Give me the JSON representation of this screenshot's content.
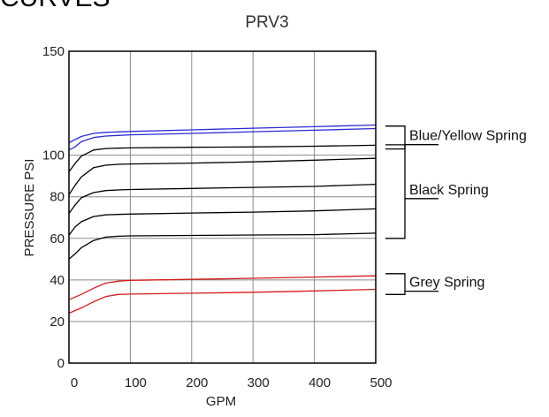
{
  "cut_heading": "CURVES",
  "chart_data": {
    "type": "line",
    "title": "PRV3",
    "xlabel": "GPM",
    "ylabel": "PRESSURE PSI",
    "xlim": [
      0,
      500
    ],
    "ylim": [
      0,
      150
    ],
    "x_ticks": [
      0,
      100,
      200,
      300,
      400,
      500
    ],
    "y_ticks": [
      0,
      20,
      40,
      60,
      80,
      100,
      150
    ],
    "grid": true,
    "groups": [
      {
        "label": "Blue/Yellow Spring",
        "y_range": [
          103,
          114
        ]
      },
      {
        "label": "Black Spring",
        "y_range": [
          60,
          105
        ]
      },
      {
        "label": "Grey Spring",
        "y_range": [
          33,
          43
        ]
      }
    ],
    "series": [
      {
        "color": "#2b2bd6",
        "x": [
          0,
          20,
          40,
          60,
          80,
          100,
          200,
          300,
          400,
          500
        ],
        "y": [
          106,
          109,
          110.5,
          111,
          111.2,
          111.4,
          112.2,
          113,
          113.7,
          114.5
        ]
      },
      {
        "color": "#2b2bd6",
        "x": [
          0,
          10,
          20,
          40,
          60,
          80,
          100,
          200,
          300,
          400,
          500
        ],
        "y": [
          102.5,
          104,
          106.5,
          108.5,
          109.2,
          109.5,
          109.8,
          110.5,
          111.3,
          112,
          112.8
        ]
      },
      {
        "color": "#000000",
        "x": [
          0,
          10,
          20,
          40,
          60,
          80,
          100,
          200,
          300,
          400,
          500
        ],
        "y": [
          92,
          96,
          99.5,
          102.5,
          103.2,
          103.4,
          103.5,
          103.8,
          104,
          104.3,
          104.8
        ]
      },
      {
        "color": "#000000",
        "x": [
          0,
          10,
          20,
          40,
          60,
          80,
          100,
          200,
          300,
          400,
          500
        ],
        "y": [
          81,
          85.5,
          89.5,
          94,
          95.2,
          95.6,
          95.8,
          96.2,
          96.8,
          97.6,
          98.5
        ]
      },
      {
        "color": "#000000",
        "x": [
          0,
          10,
          20,
          40,
          60,
          80,
          100,
          200,
          300,
          400,
          500
        ],
        "y": [
          72,
          76,
          79.5,
          82,
          83,
          83.3,
          83.5,
          84,
          84.5,
          85,
          86
        ]
      },
      {
        "color": "#000000",
        "x": [
          0,
          10,
          20,
          40,
          60,
          80,
          100,
          200,
          300,
          400,
          500
        ],
        "y": [
          61.5,
          65.5,
          68,
          70.5,
          71.3,
          71.5,
          71.7,
          72.2,
          72.6,
          73.2,
          74.2
        ]
      },
      {
        "color": "#000000",
        "x": [
          0,
          10,
          20,
          40,
          60,
          80,
          100,
          200,
          300,
          400,
          500
        ],
        "y": [
          50,
          52.5,
          55.5,
          59,
          60.6,
          61,
          61.2,
          61.4,
          61.6,
          61.8,
          62.5
        ]
      },
      {
        "color": "#d41b1b",
        "x": [
          0,
          20,
          40,
          60,
          80,
          100,
          200,
          300,
          400,
          500
        ],
        "y": [
          30.5,
          33,
          36,
          38.5,
          39.4,
          39.8,
          40.3,
          40.8,
          41.4,
          42
        ]
      },
      {
        "color": "#d41b1b",
        "x": [
          0,
          20,
          40,
          60,
          80,
          100,
          200,
          300,
          400,
          500
        ],
        "y": [
          24,
          26.5,
          29.5,
          32,
          33,
          33.2,
          33.6,
          34.1,
          34.7,
          35.5
        ]
      }
    ]
  }
}
